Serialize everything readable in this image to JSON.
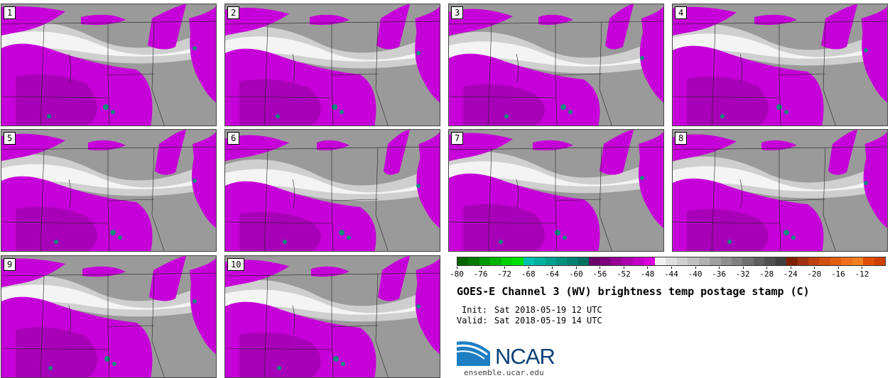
{
  "figure": {
    "title": "GOES-E Channel 3 (WV) brightness temp postage stamp (C)",
    "init_label": "Init:",
    "init_value": "Sat 2018-05-19 12 UTC",
    "valid_label": "Valid:",
    "valid_value": "Sat 2018-05-19 14 UTC"
  },
  "panels": [
    {
      "label": "1"
    },
    {
      "label": "2"
    },
    {
      "label": "3"
    },
    {
      "label": "4"
    },
    {
      "label": "5"
    },
    {
      "label": "6"
    },
    {
      "label": "7"
    },
    {
      "label": "8"
    },
    {
      "label": "9"
    },
    {
      "label": "10"
    }
  ],
  "colorbar": {
    "tick_labels": [
      "-80",
      "-76",
      "-72",
      "-68",
      "-64",
      "-60",
      "-56",
      "-52",
      "-48",
      "-44",
      "-40",
      "-36",
      "-32",
      "-28",
      "-24",
      "-20",
      "-16",
      "-12"
    ],
    "colors": [
      "#006400",
      "#007a00",
      "#009a00",
      "#00b400",
      "#00d000",
      "#00e000",
      "#00c0b0",
      "#00b0a0",
      "#00a090",
      "#009080",
      "#008070",
      "#007060",
      "#6a006a",
      "#7e007e",
      "#960096",
      "#ac00ac",
      "#c400c4",
      "#dc00dc",
      "#f0f0f0",
      "#e0e0e0",
      "#d0d0d0",
      "#c0c0c0",
      "#b0b0b0",
      "#a0a0a0",
      "#909090",
      "#808080",
      "#707070",
      "#606060",
      "#505050",
      "#404040",
      "#802000",
      "#a03010",
      "#c04010",
      "#d05010",
      "#e06010",
      "#f07020",
      "#f08020",
      "#e05000",
      "#d04000"
    ],
    "range": [
      -80,
      -8
    ]
  },
  "colors": {
    "dry_magenta": "#c600d8",
    "moist_white": "#f4f4f4",
    "mid_gray": "#9a9a9a",
    "cold_cloud_teal": "#0f8c80"
  },
  "logo": {
    "name": "NCAR",
    "url": "ensemble.ucar.edu"
  }
}
